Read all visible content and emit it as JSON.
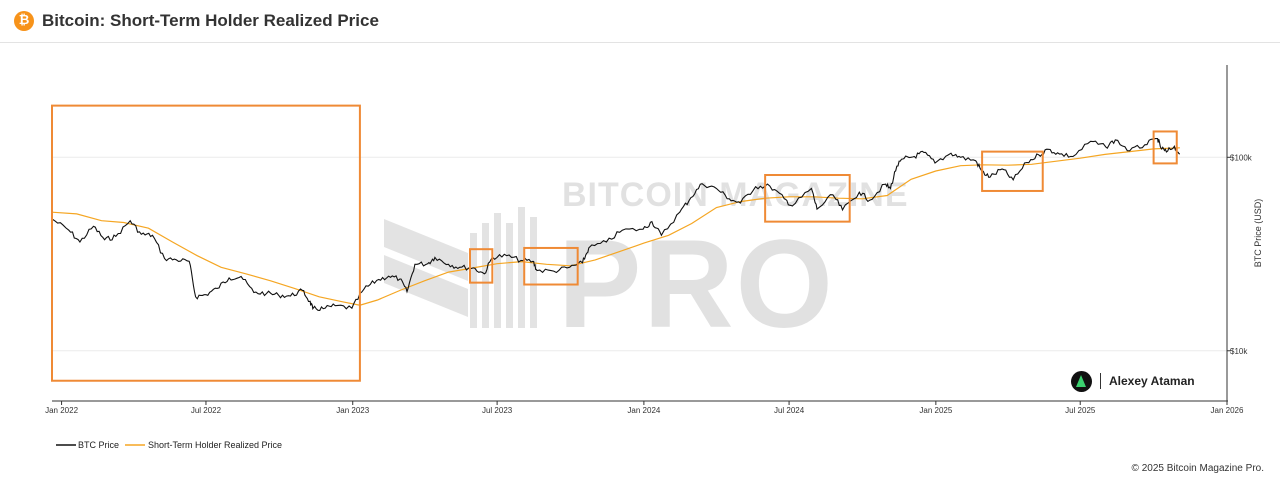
{
  "header": {
    "title": "Bitcoin: Short-Term Holder Realized Price",
    "logo_glyph": "₿",
    "logo_color": "#f7931a"
  },
  "author": {
    "name": "Alexey Ataman"
  },
  "footer": {
    "copyright": "© 2025 Bitcoin Magazine Pro."
  },
  "watermark": {
    "text": "BITCOIN MAGAZINE",
    "big": "PRO"
  },
  "colors": {
    "btc": "#111111",
    "sth": "#f5a623",
    "highlight": "#ef8a35"
  },
  "chart_data": {
    "type": "line",
    "title": "Bitcoin: Short-Term Holder Realized Price",
    "xlabel": "",
    "ylabel": "BTC Price (USD)",
    "y_scale": "log",
    "ylim": [
      5500,
      300000
    ],
    "xlim": [
      "2021-12-20",
      "2026-01-01"
    ],
    "x_ticks": [
      {
        "date": "2022-01-01",
        "label": "Jan 2022"
      },
      {
        "date": "2022-07-01",
        "label": "Jul 2022"
      },
      {
        "date": "2023-01-01",
        "label": "Jan 2023"
      },
      {
        "date": "2023-07-01",
        "label": "Jul 2023"
      },
      {
        "date": "2024-01-01",
        "label": "Jan 2024"
      },
      {
        "date": "2024-07-01",
        "label": "Jul 2024"
      },
      {
        "date": "2025-01-01",
        "label": "Jan 2025"
      },
      {
        "date": "2025-07-01",
        "label": "Jul 2025"
      },
      {
        "date": "2026-01-01",
        "label": "Jan 2026"
      }
    ],
    "y_ticks": [
      {
        "value": 10000,
        "label": "$10k"
      },
      {
        "value": 100000,
        "label": "$100k"
      }
    ],
    "legend_position": "bottom-left",
    "series": [
      {
        "name": "BTC Price",
        "color": "#111111",
        "points": [
          [
            "2021-12-20",
            48000
          ],
          [
            "2022-01-10",
            42000
          ],
          [
            "2022-01-24",
            36500
          ],
          [
            "2022-02-10",
            44000
          ],
          [
            "2022-02-24",
            37500
          ],
          [
            "2022-03-10",
            39000
          ],
          [
            "2022-03-28",
            47000
          ],
          [
            "2022-04-11",
            40000
          ],
          [
            "2022-04-25",
            39500
          ],
          [
            "2022-05-10",
            30000
          ],
          [
            "2022-05-25",
            29500
          ],
          [
            "2022-06-10",
            29000
          ],
          [
            "2022-06-18",
            19000
          ],
          [
            "2022-07-01",
            19500
          ],
          [
            "2022-07-15",
            21000
          ],
          [
            "2022-07-30",
            23800
          ],
          [
            "2022-08-14",
            24200
          ],
          [
            "2022-08-30",
            20000
          ],
          [
            "2022-09-15",
            19800
          ],
          [
            "2022-09-30",
            19400
          ],
          [
            "2022-10-15",
            19200
          ],
          [
            "2022-10-30",
            20500
          ],
          [
            "2022-11-08",
            18000
          ],
          [
            "2022-11-12",
            16500
          ],
          [
            "2022-11-25",
            16500
          ],
          [
            "2022-12-10",
            17100
          ],
          [
            "2022-12-31",
            16600
          ],
          [
            "2023-01-15",
            20800
          ],
          [
            "2023-01-31",
            23100
          ],
          [
            "2023-02-15",
            24300
          ],
          [
            "2023-03-01",
            23500
          ],
          [
            "2023-03-10",
            20200
          ],
          [
            "2023-03-20",
            28000
          ],
          [
            "2023-04-05",
            28200
          ],
          [
            "2023-04-14",
            30400
          ],
          [
            "2023-05-01",
            28000
          ],
          [
            "2023-05-15",
            27000
          ],
          [
            "2023-06-01",
            26800
          ],
          [
            "2023-06-15",
            25000
          ],
          [
            "2023-06-25",
            30500
          ],
          [
            "2023-07-13",
            31000
          ],
          [
            "2023-07-31",
            29300
          ],
          [
            "2023-08-15",
            29000
          ],
          [
            "2023-08-20",
            26000
          ],
          [
            "2023-09-10",
            25800
          ],
          [
            "2023-09-30",
            27000
          ],
          [
            "2023-10-16",
            28500
          ],
          [
            "2023-10-24",
            34000
          ],
          [
            "2023-11-15",
            36500
          ],
          [
            "2023-12-05",
            42000
          ],
          [
            "2023-12-31",
            42500
          ],
          [
            "2024-01-11",
            46500
          ],
          [
            "2024-01-23",
            39500
          ],
          [
            "2024-02-15",
            52000
          ],
          [
            "2024-02-29",
            62000
          ],
          [
            "2024-03-14",
            73000
          ],
          [
            "2024-04-01",
            69000
          ],
          [
            "2024-04-17",
            61000
          ],
          [
            "2024-05-01",
            58000
          ],
          [
            "2024-05-20",
            70500
          ],
          [
            "2024-06-07",
            71000
          ],
          [
            "2024-06-25",
            61000
          ],
          [
            "2024-07-05",
            56000
          ],
          [
            "2024-07-29",
            69000
          ],
          [
            "2024-08-05",
            54000
          ],
          [
            "2024-08-25",
            64000
          ],
          [
            "2024-09-06",
            53500
          ],
          [
            "2024-09-27",
            66000
          ],
          [
            "2024-10-10",
            60000
          ],
          [
            "2024-10-29",
            72500
          ],
          [
            "2024-11-05",
            69000
          ],
          [
            "2024-11-13",
            90000
          ],
          [
            "2024-11-22",
            98500
          ],
          [
            "2024-12-05",
            101000
          ],
          [
            "2024-12-17",
            106000
          ],
          [
            "2024-12-31",
            93500
          ],
          [
            "2025-01-20",
            105000
          ],
          [
            "2025-02-01",
            100000
          ],
          [
            "2025-02-20",
            96000
          ],
          [
            "2025-02-28",
            84000
          ],
          [
            "2025-03-10",
            79000
          ],
          [
            "2025-03-25",
            87000
          ],
          [
            "2025-04-08",
            76500
          ],
          [
            "2025-04-25",
            94000
          ],
          [
            "2025-05-10",
            103000
          ],
          [
            "2025-05-22",
            110000
          ],
          [
            "2025-06-05",
            104000
          ],
          [
            "2025-06-22",
            101000
          ],
          [
            "2025-07-14",
            121000
          ],
          [
            "2025-08-02",
            113000
          ],
          [
            "2025-08-14",
            123000
          ],
          [
            "2025-09-01",
            108000
          ],
          [
            "2025-09-20",
            116000
          ],
          [
            "2025-10-06",
            125000
          ],
          [
            "2025-10-10",
            112000
          ],
          [
            "2025-10-17",
            106500
          ],
          [
            "2025-10-27",
            114000
          ],
          [
            "2025-11-03",
            104000
          ]
        ]
      },
      {
        "name": "Short-Term Holder Realized Price",
        "color": "#f5a623",
        "points": [
          [
            "2021-12-20",
            52000
          ],
          [
            "2022-01-20",
            51000
          ],
          [
            "2022-02-20",
            47000
          ],
          [
            "2022-03-20",
            46000
          ],
          [
            "2022-04-20",
            43000
          ],
          [
            "2022-05-20",
            36500
          ],
          [
            "2022-06-20",
            31000
          ],
          [
            "2022-07-20",
            27000
          ],
          [
            "2022-08-20",
            25000
          ],
          [
            "2022-09-20",
            23000
          ],
          [
            "2022-10-20",
            21000
          ],
          [
            "2022-11-20",
            19000
          ],
          [
            "2022-12-20",
            17900
          ],
          [
            "2023-01-10",
            17200
          ],
          [
            "2023-02-01",
            18300
          ],
          [
            "2023-03-01",
            20500
          ],
          [
            "2023-04-01",
            23000
          ],
          [
            "2023-05-01",
            25500
          ],
          [
            "2023-06-01",
            26800
          ],
          [
            "2023-07-01",
            28200
          ],
          [
            "2023-08-01",
            28900
          ],
          [
            "2023-09-01",
            28000
          ],
          [
            "2023-10-01",
            27500
          ],
          [
            "2023-11-01",
            29500
          ],
          [
            "2023-12-01",
            32500
          ],
          [
            "2024-01-01",
            36000
          ],
          [
            "2024-02-01",
            39500
          ],
          [
            "2024-03-01",
            45500
          ],
          [
            "2024-04-01",
            55000
          ],
          [
            "2024-05-01",
            59000
          ],
          [
            "2024-06-01",
            61500
          ],
          [
            "2024-07-01",
            62500
          ],
          [
            "2024-08-01",
            62500
          ],
          [
            "2024-09-01",
            61500
          ],
          [
            "2024-10-01",
            61000
          ],
          [
            "2024-11-01",
            63500
          ],
          [
            "2024-12-01",
            77000
          ],
          [
            "2025-01-01",
            85000
          ],
          [
            "2025-02-01",
            90500
          ],
          [
            "2025-03-01",
            91500
          ],
          [
            "2025-04-01",
            91000
          ],
          [
            "2025-05-01",
            92000
          ],
          [
            "2025-06-01",
            95500
          ],
          [
            "2025-07-01",
            99000
          ],
          [
            "2025-08-01",
            103500
          ],
          [
            "2025-09-01",
            107000
          ],
          [
            "2025-10-01",
            110500
          ],
          [
            "2025-11-03",
            112000
          ]
        ]
      }
    ],
    "highlights": [
      {
        "x0": "2021-12-20",
        "x1": "2023-01-10",
        "y0": 7000,
        "y1": 185000
      },
      {
        "x0": "2023-05-28",
        "x1": "2023-06-25",
        "y0": 22500,
        "y1": 33500
      },
      {
        "x0": "2023-08-04",
        "x1": "2023-10-10",
        "y0": 22000,
        "y1": 34000
      },
      {
        "x0": "2024-06-01",
        "x1": "2024-09-15",
        "y0": 46500,
        "y1": 81000
      },
      {
        "x0": "2025-02-28",
        "x1": "2025-05-15",
        "y0": 67000,
        "y1": 107000
      },
      {
        "x0": "2025-10-01",
        "x1": "2025-10-30",
        "y0": 93000,
        "y1": 136000
      }
    ]
  },
  "legend": {
    "items": [
      {
        "label": "BTC Price",
        "color": "#111111"
      },
      {
        "label": "Short-Term Holder Realized Price",
        "color": "#f5a623"
      }
    ]
  }
}
